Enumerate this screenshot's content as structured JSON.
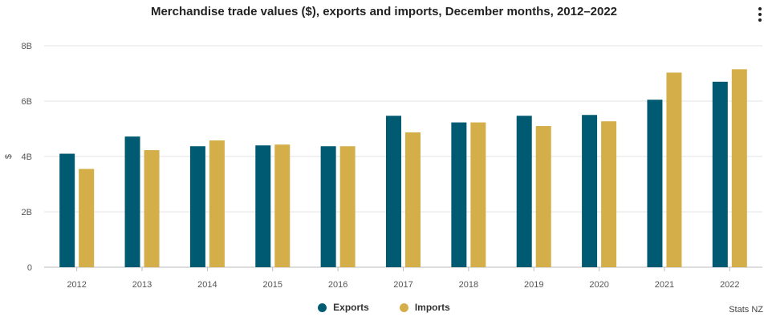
{
  "menu": {
    "icon": "vertical-ellipsis-icon"
  },
  "source": "Stats NZ",
  "chart_data": {
    "type": "bar",
    "title": "Merchandise trade values ($), exports and imports, December months, 2012–2022",
    "xlabel": "",
    "ylabel": "$",
    "ylim": [
      0,
      8
    ],
    "yticks": [
      0,
      2,
      4,
      6,
      8
    ],
    "ytick_labels": [
      "0",
      "2B",
      "4B",
      "6B",
      "8B"
    ],
    "grid": true,
    "legend_position": "bottom",
    "categories": [
      "2012",
      "2013",
      "2014",
      "2015",
      "2016",
      "2017",
      "2018",
      "2019",
      "2020",
      "2021",
      "2022"
    ],
    "series": [
      {
        "name": "Exports",
        "color": "#005a72",
        "values": [
          4.1,
          4.72,
          4.37,
          4.4,
          4.37,
          5.47,
          5.23,
          5.47,
          5.5,
          6.05,
          6.7
        ]
      },
      {
        "name": "Imports",
        "color": "#d4ae48",
        "values": [
          3.55,
          4.23,
          4.58,
          4.43,
          4.37,
          4.87,
          5.23,
          5.1,
          5.27,
          7.03,
          7.15
        ]
      }
    ]
  }
}
